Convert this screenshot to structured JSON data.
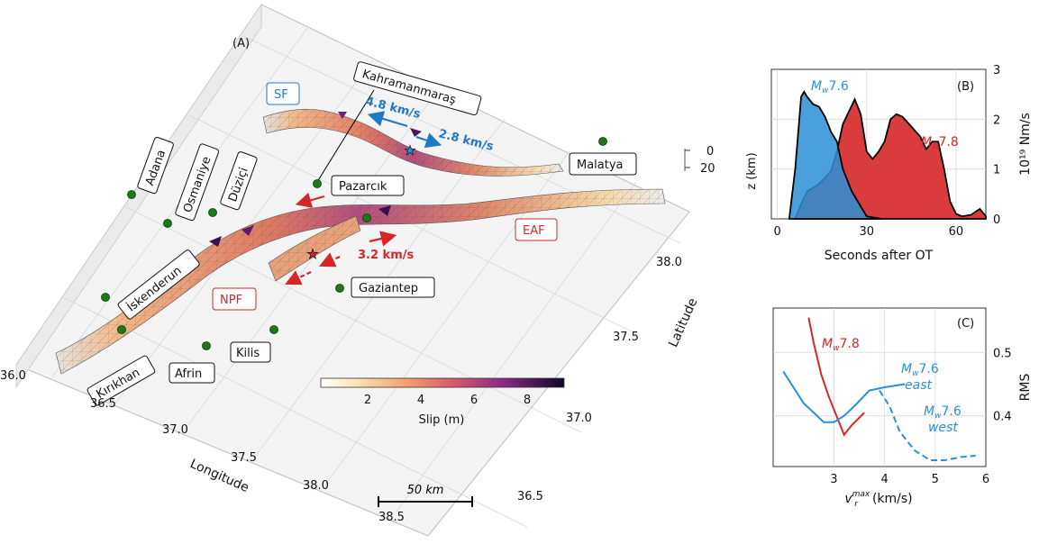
{
  "map_panel": {
    "panel_label": "(A)",
    "fault_labels": {
      "sf": "SF",
      "epf": "EAF",
      "npf": "NPF"
    },
    "cities": [
      {
        "name": "Kahramanmaraş"
      },
      {
        "name": "Pazarcık"
      },
      {
        "name": "Malatya"
      },
      {
        "name": "Adana"
      },
      {
        "name": "Osmaniye"
      },
      {
        "name": "Düziçi"
      },
      {
        "name": "İskenderun"
      },
      {
        "name": "Gaziantep"
      },
      {
        "name": "Kırıkhan"
      },
      {
        "name": "Afrin"
      },
      {
        "name": "Kilis"
      }
    ],
    "velocity_labels": [
      "4.8 km/s",
      "2.8 km/s",
      "3.2 km/s"
    ],
    "longitude_label": "Longitude",
    "latitude_label": "Latitude",
    "longitude_ticks": [
      "36.0",
      "36.5",
      "37.0",
      "37.5",
      "38.0",
      "38.5"
    ],
    "latitude_ticks": [
      "36.5",
      "37.0",
      "37.5",
      "38.0"
    ],
    "depth_ticks": [
      "0",
      "20"
    ],
    "depth_label": "z (km)",
    "colorbar_label": "Slip (m)",
    "colorbar_ticks": [
      "2",
      "4",
      "6",
      "8"
    ],
    "scalebar_label": "50 km",
    "colors": {
      "sf": "#1f78c8",
      "eaf": "#d62728",
      "station": "#1a7a1a"
    }
  },
  "chart_data": [
    {
      "panel": "(B)",
      "type": "area",
      "xlabel": "Seconds after OT",
      "ylabel": "10¹⁹ Nm/s",
      "xlim": [
        -2,
        70
      ],
      "ylim": [
        0,
        3
      ],
      "xticks": [
        0,
        30,
        60
      ],
      "yticks": [
        0,
        1,
        2,
        3
      ],
      "series": [
        {
          "name": "Mw7.6",
          "color": "#2b8fd6",
          "x": [
            4,
            6,
            8,
            9,
            10,
            12,
            14,
            16,
            18,
            20,
            22,
            25,
            28,
            30,
            35
          ],
          "y": [
            0,
            1.0,
            2.45,
            2.55,
            2.45,
            2.3,
            2.25,
            2.05,
            1.75,
            1.55,
            1.0,
            0.55,
            0.25,
            0.05,
            0
          ]
        },
        {
          "name": "Mw7.8",
          "color": "#d62728",
          "x": [
            6,
            8,
            10,
            14,
            18,
            20,
            22,
            24,
            26,
            28,
            30,
            32,
            34,
            36,
            38,
            40,
            42,
            45,
            48,
            50,
            52,
            54,
            56,
            58,
            60,
            62,
            65,
            68,
            70
          ],
          "y": [
            0,
            0.3,
            0.55,
            0.7,
            0.95,
            1.35,
            1.9,
            2.15,
            2.4,
            2.1,
            1.35,
            1.2,
            1.35,
            1.55,
            2.0,
            2.1,
            2.05,
            1.85,
            1.65,
            1.4,
            1.55,
            1.55,
            1.0,
            0.35,
            0.1,
            0.05,
            0.08,
            0.2,
            0.05
          ]
        }
      ]
    },
    {
      "panel": "(C)",
      "type": "line",
      "xlabel": "v_r^max(km/s)",
      "ylabel": "RMS",
      "xlim": [
        1.8,
        6
      ],
      "ylim": [
        0.32,
        0.57
      ],
      "xticks": [
        3,
        4,
        5,
        6
      ],
      "yticks": [
        0.4,
        0.5
      ],
      "series": [
        {
          "name": "Mw7.8",
          "color": "#d62728",
          "dash": false,
          "x": [
            2.5,
            2.6,
            2.75,
            2.9,
            3.05,
            3.2,
            3.35,
            3.6
          ],
          "y": [
            0.555,
            0.515,
            0.465,
            0.43,
            0.4,
            0.37,
            0.385,
            0.405
          ]
        },
        {
          "name": "Mw7.6 east",
          "color": "#2b8fd6",
          "dash": false,
          "x": [
            2.0,
            2.2,
            2.4,
            2.6,
            2.8,
            3.0,
            3.2,
            3.4,
            3.7,
            4.0,
            4.4
          ],
          "y": [
            0.47,
            0.445,
            0.42,
            0.405,
            0.39,
            0.39,
            0.4,
            0.415,
            0.44,
            0.445,
            0.45
          ]
        },
        {
          "name": "Mw7.6 west",
          "color": "#2b8fd6",
          "dash": true,
          "x": [
            3.9,
            4.1,
            4.3,
            4.6,
            4.9,
            5.2,
            5.5,
            5.8
          ],
          "y": [
            0.44,
            0.415,
            0.375,
            0.345,
            0.33,
            0.33,
            0.335,
            0.337
          ]
        }
      ]
    }
  ]
}
